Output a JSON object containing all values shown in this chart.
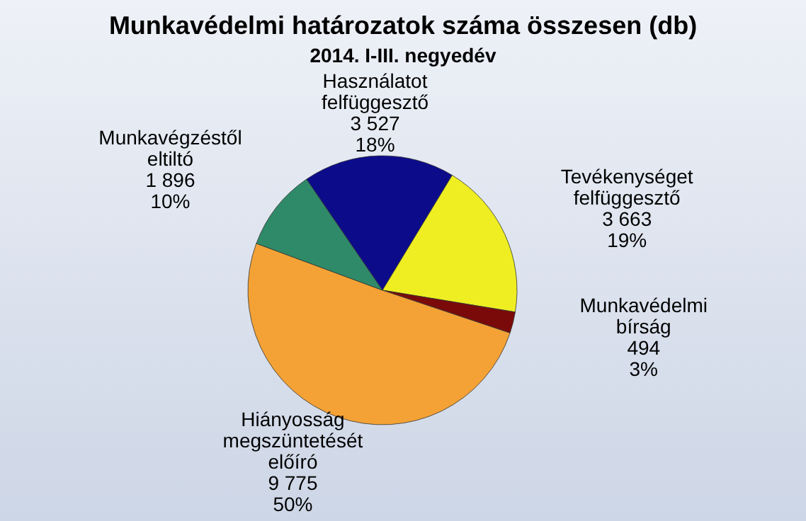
{
  "chart_data": {
    "type": "pie",
    "title": "Munkavédelmi határozatok száma összesen (db)",
    "subtitle": "2014. I-III. negyedév",
    "categories": [
      "Használatot felfüggesztő",
      "Tevékenységet felfüggesztő",
      "Munkavédelmi bírság",
      "Hiányosság megszüntetését előíró",
      "Munkavégzéstől eltiltó"
    ],
    "values": [
      3527,
      3663,
      494,
      9775,
      1896
    ],
    "colors": [
      "#0c0c8a",
      "#eeee22",
      "#7a0a0a",
      "#f4a235",
      "#2e8a68"
    ],
    "value_labels": [
      "3 527\n18%",
      "3 663\n19%",
      "494\n3%",
      "9 775\n50%",
      "1 896\n10%"
    ]
  }
}
